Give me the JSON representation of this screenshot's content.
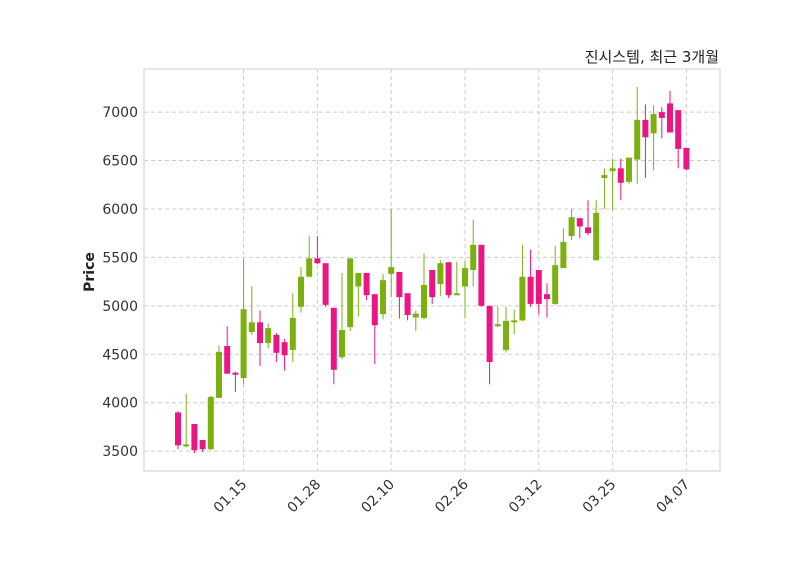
{
  "chart_data": {
    "type": "candlestick",
    "title": "진시스템, 최근 3개월",
    "xlabel": "",
    "ylabel": "Price",
    "ylim": [
      3295,
      7445
    ],
    "yticks": [
      3500,
      4000,
      4500,
      5000,
      5500,
      6000,
      6500,
      7000
    ],
    "grid": true,
    "colors": {
      "up": "#7bb10f",
      "down": "#eb1583",
      "grid": "#cccccc",
      "frame": "#dddddd"
    },
    "xticks": [
      {
        "index": 8,
        "label": "01.15"
      },
      {
        "index": 17,
        "label": "01.28"
      },
      {
        "index": 26,
        "label": "02.10"
      },
      {
        "index": 35,
        "label": "02.26"
      },
      {
        "index": 44,
        "label": "03.12"
      },
      {
        "index": 53,
        "label": "03.25"
      },
      {
        "index": 62,
        "label": "04.07"
      }
    ],
    "ohlc": [
      [
        3900,
        3910,
        3520,
        3560
      ],
      [
        3560,
        4090,
        3540,
        3570
      ],
      [
        3780,
        3780,
        3480,
        3510
      ],
      [
        3615,
        3615,
        3490,
        3520
      ],
      [
        3520,
        4070,
        3510,
        4060
      ],
      [
        4050,
        4590,
        4050,
        4525
      ],
      [
        4585,
        4790,
        4300,
        4300
      ],
      [
        4310,
        4320,
        4110,
        4290
      ],
      [
        4255,
        5480,
        4190,
        4965
      ],
      [
        4730,
        5200,
        4700,
        4830
      ],
      [
        4830,
        4950,
        4380,
        4615
      ],
      [
        4615,
        4820,
        4560,
        4770
      ],
      [
        4700,
        4720,
        4420,
        4515
      ],
      [
        4625,
        4660,
        4330,
        4490
      ],
      [
        4545,
        5130,
        4420,
        4875
      ],
      [
        4990,
        5400,
        4930,
        5300
      ],
      [
        5300,
        5720,
        5300,
        5490
      ],
      [
        5490,
        5720,
        5430,
        5440
      ],
      [
        5440,
        5440,
        4990,
        5010
      ],
      [
        4980,
        4980,
        4190,
        4340
      ],
      [
        4470,
        5340,
        4450,
        4750
      ],
      [
        4780,
        5490,
        4740,
        5490
      ],
      [
        5200,
        5340,
        4890,
        5340
      ],
      [
        5340,
        5340,
        5060,
        5110
      ],
      [
        5120,
        5120,
        4400,
        4800
      ],
      [
        4915,
        5330,
        4860,
        5265
      ],
      [
        5330,
        6000,
        5090,
        5400
      ],
      [
        5350,
        5350,
        4870,
        5090
      ],
      [
        5130,
        5130,
        4850,
        4905
      ],
      [
        4880,
        4950,
        4740,
        4920
      ],
      [
        4875,
        5540,
        4860,
        5215
      ],
      [
        5370,
        5370,
        5020,
        5090
      ],
      [
        5225,
        5470,
        5100,
        5440
      ],
      [
        5450,
        5450,
        5080,
        5110
      ],
      [
        5120,
        5450,
        5110,
        5130
      ],
      [
        5200,
        5460,
        4870,
        5390
      ],
      [
        5370,
        5890,
        5200,
        5630
      ],
      [
        5630,
        5630,
        4990,
        5000
      ],
      [
        5000,
        5000,
        4190,
        4420
      ],
      [
        4800,
        4990,
        4780,
        4810
      ],
      [
        4545,
        4990,
        4520,
        4845
      ],
      [
        4840,
        4960,
        4710,
        4850
      ],
      [
        4850,
        5630,
        4840,
        5300
      ],
      [
        5300,
        5580,
        4990,
        5020
      ],
      [
        5370,
        5370,
        4910,
        5020
      ],
      [
        5120,
        5230,
        4880,
        5070
      ],
      [
        5020,
        5620,
        5010,
        5420
      ],
      [
        5390,
        5800,
        5390,
        5660
      ],
      [
        5720,
        6000,
        5680,
        5915
      ],
      [
        5905,
        5905,
        5700,
        5820
      ],
      [
        5810,
        6090,
        5730,
        5750
      ],
      [
        5470,
        6090,
        5470,
        5960
      ],
      [
        6320,
        6420,
        6000,
        6350
      ],
      [
        6390,
        6520,
        5990,
        6420
      ],
      [
        6420,
        6520,
        6090,
        6270
      ],
      [
        6280,
        6530,
        6260,
        6530
      ],
      [
        6510,
        7260,
        6260,
        6920
      ],
      [
        6920,
        7080,
        6320,
        6740
      ],
      [
        6780,
        7070,
        6400,
        6980
      ],
      [
        7000,
        7050,
        6730,
        6940
      ],
      [
        7090,
        7220,
        6790,
        6790
      ],
      [
        7020,
        7020,
        6420,
        6620
      ],
      [
        6630,
        6630,
        6400,
        6410
      ]
    ]
  }
}
